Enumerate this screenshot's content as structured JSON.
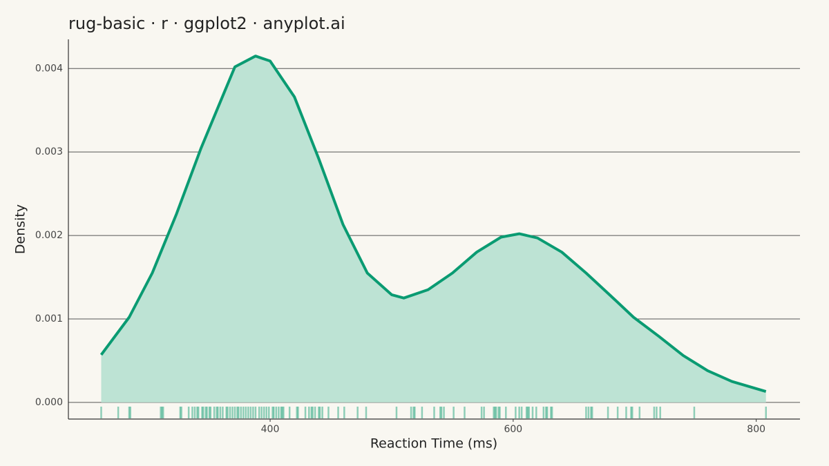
{
  "chart_data": {
    "type": "density",
    "title": "rug-basic · r · ggplot2 · anyplot.ai",
    "x_label": "Reaction Time (ms)",
    "y_label": "Density",
    "color": "#0a9b72",
    "fill": "#bde3d4",
    "x": [
      261,
      284,
      303,
      323,
      343,
      363,
      371,
      388,
      400,
      420,
      440,
      460,
      480,
      500,
      510,
      530,
      550,
      570,
      590,
      605,
      620,
      640,
      660,
      680,
      699,
      720,
      740,
      760,
      780,
      808
    ],
    "values": [
      0.00057,
      0.00102,
      0.00155,
      0.00226,
      0.00304,
      0.00374,
      0.00402,
      0.00415,
      0.00409,
      0.00366,
      0.00292,
      0.00213,
      0.00155,
      0.00129,
      0.00125,
      0.00135,
      0.00155,
      0.0018,
      0.00198,
      0.00202,
      0.00197,
      0.0018,
      0.00155,
      0.00128,
      0.00102,
      0.00079,
      0.00056,
      0.00038,
      0.00025,
      0.00013
    ],
    "rug": [
      261,
      275,
      284,
      285,
      310,
      311,
      312,
      326,
      327,
      333,
      336,
      338,
      340,
      341,
      344,
      345,
      347,
      348,
      350,
      351,
      354,
      356,
      357,
      359,
      361,
      364,
      365,
      367,
      369,
      371,
      373,
      374,
      376,
      378,
      380,
      382,
      384,
      386,
      388,
      391,
      393,
      395,
      397,
      399,
      402,
      403,
      405,
      407,
      409,
      410,
      411,
      416,
      422,
      423,
      429,
      432,
      434,
      435,
      437,
      440,
      441,
      443,
      448,
      456,
      461,
      472,
      479,
      504,
      516,
      518,
      519,
      525,
      535,
      540,
      541,
      543,
      551,
      560,
      574,
      576,
      584,
      585,
      586,
      588,
      589,
      594,
      602,
      605,
      607,
      611,
      612,
      613,
      616,
      619,
      625,
      627,
      628,
      631,
      632,
      660,
      662,
      664,
      665,
      678,
      686,
      693,
      697,
      698,
      704,
      716,
      718,
      721,
      749,
      808
    ],
    "xlim": [
      234,
      836
    ],
    "xticks": [
      400,
      600,
      800
    ],
    "ylim": [
      -0.0002,
      0.00435
    ],
    "yticks": [
      {
        "value": 0,
        "label": "0.000"
      },
      0.001,
      0.002,
      0.003,
      0.004
    ],
    "grid": true
  }
}
